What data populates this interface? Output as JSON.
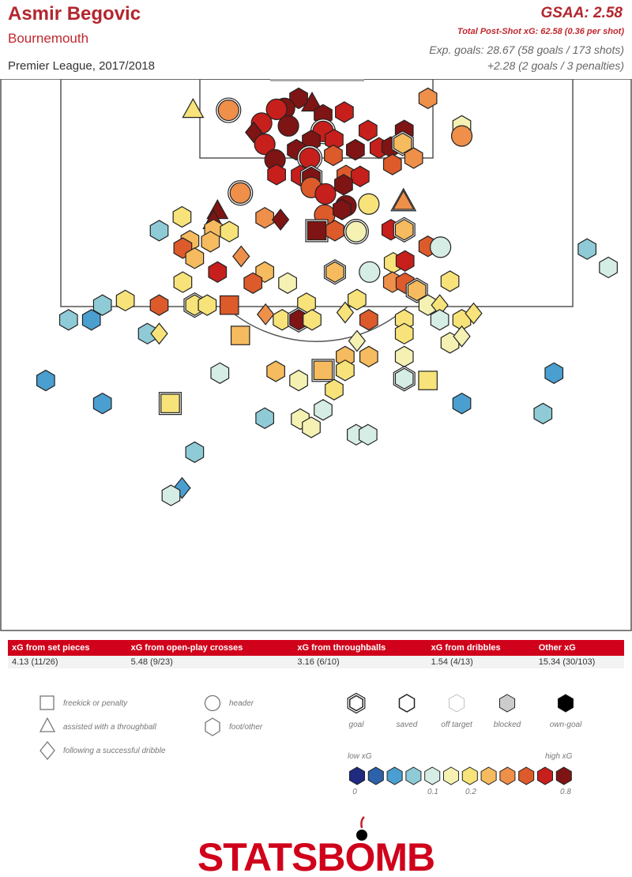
{
  "header": {
    "player": "Asmir Begovic",
    "team": "Bournemouth",
    "competition": "Premier League, 2017/2018",
    "gsaa": "GSAA: 2.58",
    "psxg": "Total Post-Shot xG: 62.58 (0.36 per shot)",
    "xg_line1": "Exp. goals: 28.67 (58 goals / 173 shots)",
    "xg_line2": "+2.28 (2 goals / 3 penalties)"
  },
  "stats_table": {
    "headers": [
      "xG from set pieces",
      "xG from open-play crosses",
      "xG from throughballs",
      "xG from dribbles",
      "Other xG"
    ],
    "values": [
      "4.13 (11/26)",
      "5.48 (9/23)",
      "3.16 (6/10)",
      "1.54 (4/13)",
      "15.34 (30/103)"
    ]
  },
  "legend": {
    "shapes": [
      {
        "shape": "square",
        "label": "freekick or penalty"
      },
      {
        "shape": "triangle",
        "label": "assisted with a throughball"
      },
      {
        "shape": "diamond",
        "label": "following a successful dribble"
      },
      {
        "shape": "circle",
        "label": "header"
      },
      {
        "shape": "hexagon",
        "label": "foot/other"
      }
    ],
    "outcomes": [
      {
        "label": "goal",
        "fill": "#ffffff",
        "double": true
      },
      {
        "label": "saved",
        "fill": "#ffffff",
        "double": false
      },
      {
        "label": "off target",
        "fill": "#ffffff",
        "double": false,
        "thin": true
      },
      {
        "label": "blocked",
        "fill": "#cccccc",
        "double": false
      },
      {
        "label": "own-goal",
        "fill": "#000000",
        "double": false
      }
    ],
    "scale_low": "low xG",
    "scale_high": "high xG",
    "scale_colors": [
      "#1f2a80",
      "#2c62a9",
      "#4a9fd0",
      "#8ecbd6",
      "#d6ede5",
      "#f4f1b3",
      "#f7e37a",
      "#f5bb5e",
      "#ee8f4a",
      "#dd5a2b",
      "#c61f1c",
      "#7f1414"
    ],
    "scale_ticks": [
      "0",
      "0.1",
      "0.2",
      "0.8"
    ]
  },
  "logo": {
    "text": "STATSBOMB"
  },
  "chart_data": {
    "type": "scatter",
    "title": "",
    "xlabel": "",
    "ylabel": "",
    "coordinate_units": "StatsBomb pitch units (x: 80 wide, y: distance from goal line, max 60)",
    "xlim": [
      0,
      80
    ],
    "ylim": [
      0,
      60
    ],
    "color_scale": [
      "#1f2a80",
      "#2c62a9",
      "#4a9fd0",
      "#8ecbd6",
      "#d6ede5",
      "#f4f1b3",
      "#f7e37a",
      "#f5bb5e",
      "#ee8f4a",
      "#dd5a2b",
      "#c61f1c",
      "#7f1414"
    ],
    "shots": [
      {
        "x": 37.8,
        "y": 2.1,
        "shape": "h",
        "c": 11,
        "o": "s"
      },
      {
        "x": 43.6,
        "y": 3.6,
        "shape": "h",
        "c": 10,
        "o": "s"
      },
      {
        "x": 54.2,
        "y": 2.1,
        "shape": "h",
        "c": 8,
        "o": "s"
      },
      {
        "x": 28.9,
        "y": 3.4,
        "shape": "c",
        "c": 8,
        "o": "g"
      },
      {
        "x": 24.4,
        "y": 3.4,
        "shape": "t",
        "c": 6,
        "o": "s"
      },
      {
        "x": 36.0,
        "y": 3.2,
        "shape": "c",
        "c": 11,
        "o": "s"
      },
      {
        "x": 35.0,
        "y": 3.3,
        "shape": "c",
        "c": 10,
        "o": "s"
      },
      {
        "x": 39.5,
        "y": 2.7,
        "shape": "t",
        "c": 11,
        "o": "s"
      },
      {
        "x": 40.9,
        "y": 3.9,
        "shape": "h",
        "c": 11,
        "o": "s"
      },
      {
        "x": 33.1,
        "y": 4.8,
        "shape": "c",
        "c": 10,
        "o": "s"
      },
      {
        "x": 32.1,
        "y": 5.8,
        "shape": "d",
        "c": 11,
        "o": "s"
      },
      {
        "x": 36.5,
        "y": 5.1,
        "shape": "c",
        "c": 11,
        "o": "s"
      },
      {
        "x": 40.9,
        "y": 5.7,
        "shape": "c",
        "c": 10,
        "o": "g"
      },
      {
        "x": 46.6,
        "y": 5.6,
        "shape": "h",
        "c": 10,
        "o": "s"
      },
      {
        "x": 51.2,
        "y": 5.6,
        "shape": "h",
        "c": 11,
        "o": "s"
      },
      {
        "x": 58.5,
        "y": 5.1,
        "shape": "h",
        "c": 5,
        "o": "s"
      },
      {
        "x": 58.5,
        "y": 6.2,
        "shape": "c",
        "c": 8,
        "o": "s"
      },
      {
        "x": 33.5,
        "y": 7.1,
        "shape": "c",
        "c": 10,
        "o": "s"
      },
      {
        "x": 39.4,
        "y": 6.7,
        "shape": "h",
        "c": 11,
        "o": "s"
      },
      {
        "x": 42.3,
        "y": 6.6,
        "shape": "h",
        "c": 10,
        "o": "s"
      },
      {
        "x": 37.5,
        "y": 7.7,
        "shape": "h",
        "c": 11,
        "o": "s"
      },
      {
        "x": 45.0,
        "y": 7.7,
        "shape": "h",
        "c": 11,
        "o": "s"
      },
      {
        "x": 48.0,
        "y": 7.5,
        "shape": "h",
        "c": 10,
        "o": "s"
      },
      {
        "x": 49.5,
        "y": 7.4,
        "shape": "h",
        "c": 11,
        "o": "s"
      },
      {
        "x": 51.0,
        "y": 7.0,
        "shape": "h",
        "c": 7,
        "o": "g"
      },
      {
        "x": 39.2,
        "y": 8.6,
        "shape": "c",
        "c": 10,
        "o": "g"
      },
      {
        "x": 42.2,
        "y": 8.3,
        "shape": "h",
        "c": 9,
        "o": "s"
      },
      {
        "x": 34.8,
        "y": 8.8,
        "shape": "c",
        "c": 11,
        "o": "s"
      },
      {
        "x": 35.0,
        "y": 10.4,
        "shape": "h",
        "c": 10,
        "o": "s"
      },
      {
        "x": 38.0,
        "y": 10.5,
        "shape": "h",
        "c": 10,
        "o": "s"
      },
      {
        "x": 39.4,
        "y": 10.7,
        "shape": "h",
        "c": 11,
        "o": "g"
      },
      {
        "x": 43.8,
        "y": 10.5,
        "shape": "h",
        "c": 9,
        "o": "s"
      },
      {
        "x": 45.6,
        "y": 10.6,
        "shape": "h",
        "c": 10,
        "o": "s"
      },
      {
        "x": 49.7,
        "y": 9.3,
        "shape": "h",
        "c": 9,
        "o": "s"
      },
      {
        "x": 52.4,
        "y": 8.6,
        "shape": "h",
        "c": 8,
        "o": "s"
      },
      {
        "x": 39.4,
        "y": 11.8,
        "shape": "c",
        "c": 9,
        "o": "s"
      },
      {
        "x": 43.5,
        "y": 11.5,
        "shape": "h",
        "c": 11,
        "o": "s"
      },
      {
        "x": 30.4,
        "y": 12.4,
        "shape": "c",
        "c": 8,
        "o": "g"
      },
      {
        "x": 41.2,
        "y": 12.5,
        "shape": "c",
        "c": 10,
        "o": "s"
      },
      {
        "x": 43.8,
        "y": 13.8,
        "shape": "c",
        "c": 11,
        "o": "s"
      },
      {
        "x": 46.7,
        "y": 13.6,
        "shape": "c",
        "c": 6,
        "o": "s"
      },
      {
        "x": 51.1,
        "y": 13.4,
        "shape": "t",
        "c": 8,
        "o": "g"
      },
      {
        "x": 41.1,
        "y": 14.8,
        "shape": "c",
        "c": 9,
        "o": "s"
      },
      {
        "x": 43.3,
        "y": 14.2,
        "shape": "h",
        "c": 11,
        "o": "s"
      },
      {
        "x": 33.5,
        "y": 15.1,
        "shape": "h",
        "c": 8,
        "o": "s"
      },
      {
        "x": 35.5,
        "y": 15.3,
        "shape": "d",
        "c": 11,
        "o": "s"
      },
      {
        "x": 40.1,
        "y": 16.5,
        "shape": "s",
        "c": 11,
        "o": "g"
      },
      {
        "x": 42.4,
        "y": 16.5,
        "shape": "h",
        "c": 9,
        "o": "s"
      },
      {
        "x": 45.1,
        "y": 16.6,
        "shape": "c",
        "c": 5,
        "o": "g"
      },
      {
        "x": 49.5,
        "y": 16.4,
        "shape": "h",
        "c": 10,
        "o": "s"
      },
      {
        "x": 51.2,
        "y": 16.4,
        "shape": "h",
        "c": 7,
        "o": "g"
      },
      {
        "x": 27.5,
        "y": 14.4,
        "shape": "t",
        "c": 11,
        "o": "s"
      },
      {
        "x": 27.0,
        "y": 15.5,
        "shape": "t",
        "c": 11,
        "o": "s"
      },
      {
        "x": 23.0,
        "y": 15.0,
        "shape": "h",
        "c": 6,
        "o": "s"
      },
      {
        "x": 27.0,
        "y": 16.4,
        "shape": "h",
        "c": 7,
        "o": "s"
      },
      {
        "x": 29.0,
        "y": 16.6,
        "shape": "h",
        "c": 6,
        "o": "s"
      },
      {
        "x": 20.1,
        "y": 16.5,
        "shape": "h",
        "c": 3,
        "o": "s"
      },
      {
        "x": 24.0,
        "y": 17.6,
        "shape": "h",
        "c": 7,
        "o": "s"
      },
      {
        "x": 26.6,
        "y": 17.7,
        "shape": "h",
        "c": 7,
        "o": "s"
      },
      {
        "x": 23.1,
        "y": 18.4,
        "shape": "h",
        "c": 9,
        "o": "s"
      },
      {
        "x": 24.6,
        "y": 19.5,
        "shape": "h",
        "c": 7,
        "o": "s"
      },
      {
        "x": 30.5,
        "y": 19.3,
        "shape": "d",
        "c": 8,
        "o": "s"
      },
      {
        "x": 27.5,
        "y": 21.0,
        "shape": "h",
        "c": 10,
        "o": "s"
      },
      {
        "x": 33.5,
        "y": 21.0,
        "shape": "h",
        "c": 7,
        "o": "s"
      },
      {
        "x": 23.1,
        "y": 22.1,
        "shape": "h",
        "c": 6,
        "o": "s"
      },
      {
        "x": 32.0,
        "y": 22.2,
        "shape": "h",
        "c": 9,
        "o": "s"
      },
      {
        "x": 36.4,
        "y": 22.2,
        "shape": "h",
        "c": 5,
        "o": "s"
      },
      {
        "x": 42.4,
        "y": 21.0,
        "shape": "h",
        "c": 7,
        "o": "g"
      },
      {
        "x": 46.8,
        "y": 21.0,
        "shape": "c",
        "c": 4,
        "o": "s"
      },
      {
        "x": 49.8,
        "y": 20.0,
        "shape": "h",
        "c": 6,
        "o": "s"
      },
      {
        "x": 51.3,
        "y": 19.8,
        "shape": "h",
        "c": 10,
        "o": "s"
      },
      {
        "x": 54.2,
        "y": 18.2,
        "shape": "h",
        "c": 9,
        "o": "s"
      },
      {
        "x": 55.8,
        "y": 18.3,
        "shape": "c",
        "c": 4,
        "o": "s"
      },
      {
        "x": 49.7,
        "y": 22.1,
        "shape": "h",
        "c": 8,
        "o": "s"
      },
      {
        "x": 51.3,
        "y": 22.2,
        "shape": "h",
        "c": 9,
        "o": "s"
      },
      {
        "x": 52.8,
        "y": 23.0,
        "shape": "h",
        "c": 7,
        "o": "g"
      },
      {
        "x": 57.0,
        "y": 22.0,
        "shape": "h",
        "c": 6,
        "o": "s"
      },
      {
        "x": 54.2,
        "y": 24.6,
        "shape": "h",
        "c": 5,
        "o": "s"
      },
      {
        "x": 55.7,
        "y": 24.6,
        "shape": "d",
        "c": 6,
        "o": "s"
      },
      {
        "x": 45.2,
        "y": 24.0,
        "shape": "h",
        "c": 6,
        "o": "s"
      },
      {
        "x": 38.8,
        "y": 24.4,
        "shape": "h",
        "c": 6,
        "o": "s"
      },
      {
        "x": 20.1,
        "y": 24.6,
        "shape": "h",
        "c": 9,
        "o": "s"
      },
      {
        "x": 15.8,
        "y": 24.1,
        "shape": "h",
        "c": 6,
        "o": "s"
      },
      {
        "x": 12.9,
        "y": 24.6,
        "shape": "h",
        "c": 3,
        "o": "s"
      },
      {
        "x": 24.6,
        "y": 24.6,
        "shape": "h",
        "c": 6,
        "o": "g"
      },
      {
        "x": 29.0,
        "y": 24.6,
        "shape": "s",
        "c": 9,
        "o": "s"
      },
      {
        "x": 26.2,
        "y": 24.6,
        "shape": "h",
        "c": 6,
        "o": "s"
      },
      {
        "x": 8.6,
        "y": 26.2,
        "shape": "h",
        "c": 3,
        "o": "s"
      },
      {
        "x": 11.5,
        "y": 26.2,
        "shape": "h",
        "c": 2,
        "o": "s"
      },
      {
        "x": 33.6,
        "y": 25.6,
        "shape": "d",
        "c": 8,
        "o": "s"
      },
      {
        "x": 35.7,
        "y": 26.2,
        "shape": "h",
        "c": 6,
        "o": "s"
      },
      {
        "x": 37.8,
        "y": 26.2,
        "shape": "h",
        "c": 11,
        "o": "g"
      },
      {
        "x": 39.5,
        "y": 26.2,
        "shape": "h",
        "c": 6,
        "o": "s"
      },
      {
        "x": 43.7,
        "y": 25.4,
        "shape": "d",
        "c": 6,
        "o": "s"
      },
      {
        "x": 46.7,
        "y": 26.2,
        "shape": "h",
        "c": 9,
        "o": "s"
      },
      {
        "x": 51.2,
        "y": 26.2,
        "shape": "h",
        "c": 6,
        "o": "s"
      },
      {
        "x": 55.7,
        "y": 26.2,
        "shape": "h",
        "c": 4,
        "o": "s"
      },
      {
        "x": 58.5,
        "y": 26.2,
        "shape": "h",
        "c": 6,
        "o": "s"
      },
      {
        "x": 60.0,
        "y": 25.5,
        "shape": "d",
        "c": 6,
        "o": "s"
      },
      {
        "x": 30.4,
        "y": 27.9,
        "shape": "s",
        "c": 7,
        "o": "s"
      },
      {
        "x": 18.6,
        "y": 27.7,
        "shape": "h",
        "c": 3,
        "o": "s"
      },
      {
        "x": 20.1,
        "y": 27.7,
        "shape": "d",
        "c": 6,
        "o": "s"
      },
      {
        "x": 51.2,
        "y": 27.7,
        "shape": "h",
        "c": 6,
        "o": "s"
      },
      {
        "x": 45.2,
        "y": 28.5,
        "shape": "d",
        "c": 5,
        "o": "s"
      },
      {
        "x": 57.0,
        "y": 28.7,
        "shape": "h",
        "c": 5,
        "o": "s"
      },
      {
        "x": 58.5,
        "y": 28.0,
        "shape": "d",
        "c": 5,
        "o": "s"
      },
      {
        "x": 43.7,
        "y": 30.2,
        "shape": "h",
        "c": 7,
        "o": "s"
      },
      {
        "x": 46.7,
        "y": 30.2,
        "shape": "h",
        "c": 7,
        "o": "s"
      },
      {
        "x": 51.2,
        "y": 30.2,
        "shape": "h",
        "c": 5,
        "o": "s"
      },
      {
        "x": 27.8,
        "y": 32.0,
        "shape": "h",
        "c": 4,
        "o": "s"
      },
      {
        "x": 34.9,
        "y": 31.8,
        "shape": "h",
        "c": 7,
        "o": "s"
      },
      {
        "x": 37.8,
        "y": 32.8,
        "shape": "h",
        "c": 5,
        "o": "s"
      },
      {
        "x": 40.9,
        "y": 31.7,
        "shape": "s",
        "c": 7,
        "o": "g"
      },
      {
        "x": 43.7,
        "y": 31.7,
        "shape": "h",
        "c": 6,
        "o": "s"
      },
      {
        "x": 51.2,
        "y": 32.6,
        "shape": "h",
        "c": 4,
        "o": "g"
      },
      {
        "x": 54.2,
        "y": 32.8,
        "shape": "s",
        "c": 6,
        "o": "s"
      },
      {
        "x": 42.3,
        "y": 33.8,
        "shape": "h",
        "c": 6,
        "o": "s"
      },
      {
        "x": 5.7,
        "y": 32.8,
        "shape": "h",
        "c": 2,
        "o": "s"
      },
      {
        "x": 12.9,
        "y": 35.3,
        "shape": "h",
        "c": 2,
        "o": "s"
      },
      {
        "x": 21.5,
        "y": 35.3,
        "shape": "s",
        "c": 6,
        "o": "g"
      },
      {
        "x": 33.5,
        "y": 36.9,
        "shape": "h",
        "c": 3,
        "o": "s"
      },
      {
        "x": 38.0,
        "y": 37.0,
        "shape": "h",
        "c": 5,
        "o": "s"
      },
      {
        "x": 40.9,
        "y": 36.0,
        "shape": "h",
        "c": 4,
        "o": "s"
      },
      {
        "x": 39.4,
        "y": 37.9,
        "shape": "h",
        "c": 5,
        "o": "s"
      },
      {
        "x": 45.1,
        "y": 38.7,
        "shape": "h",
        "c": 4,
        "o": "s"
      },
      {
        "x": 46.6,
        "y": 38.7,
        "shape": "h",
        "c": 4,
        "o": "s"
      },
      {
        "x": 58.5,
        "y": 35.3,
        "shape": "h",
        "c": 2,
        "o": "s"
      },
      {
        "x": 68.8,
        "y": 36.4,
        "shape": "h",
        "c": 3,
        "o": "s"
      },
      {
        "x": 70.2,
        "y": 32.0,
        "shape": "h",
        "c": 2,
        "o": "s"
      },
      {
        "x": 24.6,
        "y": 40.6,
        "shape": "h",
        "c": 3,
        "o": "s"
      },
      {
        "x": 23.0,
        "y": 44.5,
        "shape": "d",
        "c": 2,
        "o": "s"
      },
      {
        "x": 21.6,
        "y": 45.3,
        "shape": "h",
        "c": 4,
        "o": "s"
      },
      {
        "x": 74.4,
        "y": 18.5,
        "shape": "h",
        "c": 3,
        "o": "s"
      },
      {
        "x": 77.1,
        "y": 20.5,
        "shape": "h",
        "c": 4,
        "o": "s"
      }
    ]
  }
}
